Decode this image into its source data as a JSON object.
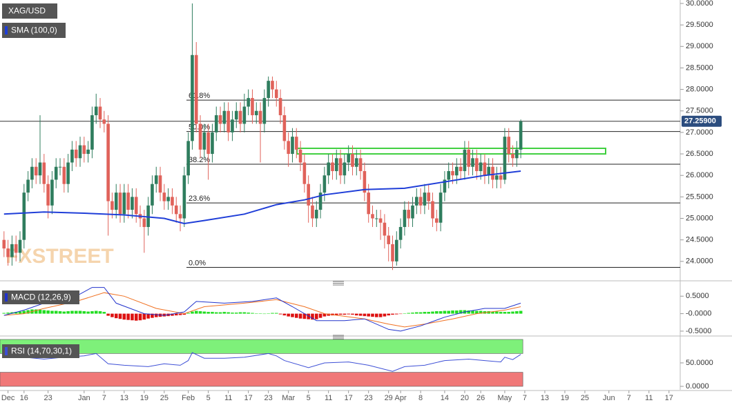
{
  "chart_data": [
    {
      "type": "candlestick",
      "name": "XAG/USD",
      "watermark": "FXSTREET",
      "xlim": [
        -1,
        168.8
      ],
      "ylim": [
        23.58,
        30.08
      ],
      "yticks": [
        {
          "value": 24,
          "label": "24.0000"
        },
        {
          "value": 24.5,
          "label": "24.5000"
        },
        {
          "value": 25,
          "label": "25.0000"
        },
        {
          "value": 25.5,
          "label": "25.5000"
        },
        {
          "value": 26,
          "label": "26.0000"
        },
        {
          "value": 26.5,
          "label": "26.5000"
        },
        {
          "value": 27,
          "label": "27.0000"
        },
        {
          "value": 27.5,
          "label": "27.5000"
        },
        {
          "value": 28,
          "label": "28.0000"
        },
        {
          "value": 28.5,
          "label": "28.5000"
        },
        {
          "value": 29,
          "label": "29.0000"
        },
        {
          "value": 29.5,
          "label": "29.5000"
        },
        {
          "value": 30,
          "label": "30.0000"
        }
      ],
      "up_color": "#2f7d5e",
      "down_color": "#e0625a",
      "open": [
        24.5,
        24.3,
        24.1,
        24.4,
        24.2,
        24.5,
        25.6,
        25.9,
        26.2,
        26.0,
        26.3,
        25.8,
        25.3,
        25.9,
        26.2,
        26.2,
        25.8,
        26.3,
        26.6,
        26.4,
        26.7,
        26.5,
        26.6,
        27.4,
        27.6,
        27.3,
        27.2,
        25.4,
        25.2,
        25.6,
        25.1,
        25.6,
        25.2,
        25.5,
        25.1,
        25.0,
        24.8,
        25.3,
        25.8,
        26.0,
        25.6,
        25.4,
        25.5,
        25.3,
        25.1,
        25.0,
        26.0,
        26.8,
        28.8,
        27.2,
        26.6,
        27.0,
        26.5,
        27.0,
        27.4,
        27.2,
        27.5,
        27.0,
        27.3,
        27.5,
        27.2,
        27.6,
        27.8,
        27.4,
        27.5,
        27.2,
        27.8,
        28.2,
        28.0,
        27.8,
        27.4,
        26.8,
        26.5,
        26.9,
        26.6,
        26.3,
        25.8,
        25.3,
        25.0,
        25.2,
        25.6,
        26.0,
        26.3,
        26.1,
        26.4,
        26.0,
        26.3,
        26.5,
        26.2,
        26.4,
        26.1,
        25.6,
        25.1,
        25.0,
        25.0,
        24.9,
        24.6,
        24.4,
        24.0,
        24.5,
        24.8,
        25.2,
        25.0,
        25.3,
        25.5,
        25.3,
        25.6,
        25.4,
        25.0,
        24.9,
        25.6,
        25.9,
        26.1,
        26.0,
        26.2,
        26.1,
        26.6,
        26.2,
        26.4,
        26.1,
        26.3,
        26.0,
        26.2,
        25.9,
        26.0,
        25.9,
        26.9,
        26.5,
        26.4,
        26.6
      ],
      "high": [
        24.7,
        24.5,
        24.6,
        24.6,
        24.7,
        25.8,
        26.1,
        26.4,
        26.4,
        27.4,
        26.5,
        26.0,
        26.1,
        26.4,
        26.4,
        26.4,
        26.5,
        26.8,
        26.8,
        26.9,
        26.9,
        26.8,
        27.6,
        27.9,
        27.8,
        27.5,
        27.4,
        25.6,
        25.8,
        25.8,
        25.8,
        25.8,
        25.7,
        25.7,
        25.3,
        25.2,
        25.5,
        26.0,
        26.2,
        26.2,
        25.8,
        25.7,
        25.7,
        25.5,
        25.3,
        26.2,
        27.0,
        30.0,
        29.1,
        27.4,
        27.2,
        27.2,
        27.2,
        27.6,
        27.6,
        27.7,
        27.7,
        27.5,
        27.7,
        27.7,
        27.9,
        28.0,
        28.0,
        27.7,
        27.7,
        28.0,
        28.3,
        28.3,
        28.2,
        28.0,
        27.6,
        27.0,
        27.1,
        27.1,
        26.8,
        26.5,
        26.0,
        25.5,
        25.4,
        25.8,
        26.2,
        26.5,
        26.5,
        26.6,
        26.6,
        26.5,
        26.7,
        26.7,
        26.6,
        26.6,
        26.3,
        25.8,
        25.3,
        25.2,
        25.2,
        25.1,
        24.8,
        24.6,
        24.7,
        25.0,
        25.4,
        25.4,
        25.5,
        25.7,
        25.7,
        25.8,
        25.8,
        25.6,
        25.2,
        25.8,
        26.1,
        26.3,
        26.3,
        26.4,
        26.4,
        26.8,
        26.8,
        26.6,
        26.6,
        26.5,
        26.5,
        26.4,
        26.4,
        26.2,
        26.2,
        27.1,
        27.1,
        26.7,
        26.8,
        27.3
      ],
      "low": [
        24.1,
        23.9,
        23.9,
        24.0,
        24.0,
        24.3,
        25.4,
        25.7,
        25.8,
        25.8,
        25.6,
        25.0,
        25.1,
        25.7,
        26.0,
        25.6,
        25.6,
        26.1,
        26.2,
        26.2,
        26.3,
        26.3,
        26.4,
        27.2,
        27.1,
        27.0,
        24.6,
        25.0,
        25.0,
        24.9,
        24.9,
        25.0,
        25.0,
        24.9,
        24.8,
        24.2,
        24.6,
        25.1,
        25.6,
        25.4,
        25.2,
        25.2,
        25.1,
        24.9,
        24.7,
        24.8,
        25.8,
        26.6,
        27.0,
        26.4,
        26.4,
        25.9,
        26.3,
        26.8,
        27.0,
        27.0,
        26.8,
        26.8,
        27.1,
        27.0,
        27.0,
        27.4,
        27.2,
        27.2,
        26.3,
        27.0,
        27.6,
        27.8,
        27.6,
        27.2,
        26.6,
        26.2,
        26.3,
        26.4,
        26.1,
        25.6,
        24.9,
        24.8,
        24.8,
        25.0,
        25.4,
        25.8,
        25.9,
        25.9,
        25.8,
        25.8,
        26.1,
        26.0,
        26.0,
        25.9,
        25.4,
        24.9,
        24.8,
        24.8,
        24.5,
        24.3,
        24.0,
        23.8,
        23.9,
        24.3,
        24.6,
        24.8,
        24.8,
        25.1,
        25.1,
        25.1,
        25.2,
        24.8,
        24.7,
        24.7,
        25.4,
        25.7,
        25.8,
        25.8,
        25.9,
        25.9,
        26.0,
        26.0,
        25.9,
        25.9,
        25.8,
        25.8,
        25.7,
        25.7,
        25.7,
        25.8,
        26.3,
        26.2,
        26.2,
        26.4
      ],
      "close": [
        24.3,
        24.1,
        24.4,
        24.2,
        24.5,
        25.6,
        25.9,
        26.2,
        26.0,
        26.3,
        25.8,
        25.3,
        25.9,
        26.2,
        26.2,
        25.8,
        26.3,
        26.6,
        26.4,
        26.7,
        26.5,
        26.6,
        27.4,
        27.6,
        27.3,
        27.2,
        25.4,
        25.2,
        25.6,
        25.1,
        25.6,
        25.2,
        25.5,
        25.1,
        25.0,
        24.8,
        25.3,
        25.8,
        26.0,
        25.6,
        25.4,
        25.5,
        25.3,
        25.1,
        25.0,
        26.0,
        26.8,
        28.8,
        27.2,
        26.6,
        27.0,
        26.5,
        27.0,
        27.4,
        27.2,
        27.5,
        27.0,
        27.3,
        27.5,
        27.2,
        27.6,
        27.8,
        27.4,
        27.5,
        27.2,
        27.8,
        28.2,
        28.0,
        27.8,
        27.4,
        26.8,
        26.5,
        26.9,
        26.6,
        26.3,
        25.8,
        25.3,
        25.0,
        25.2,
        25.6,
        26.0,
        26.3,
        26.1,
        26.4,
        26.0,
        26.3,
        26.5,
        26.2,
        26.4,
        26.1,
        25.6,
        25.1,
        25.0,
        25.0,
        24.9,
        24.6,
        24.4,
        24.0,
        24.5,
        24.8,
        25.2,
        25.0,
        25.3,
        25.5,
        25.3,
        25.6,
        25.4,
        25.0,
        24.9,
        25.6,
        25.9,
        26.1,
        26.0,
        26.2,
        26.1,
        26.6,
        26.2,
        26.4,
        26.1,
        26.3,
        26.0,
        26.2,
        25.9,
        26.0,
        25.9,
        26.9,
        26.5,
        26.4,
        26.6,
        27.259
      ],
      "sma": {
        "name": "SMA (100,0)",
        "color": "#1f3ed8",
        "x": [
          0,
          10,
          20,
          30,
          40,
          45,
          50,
          60,
          68,
          75,
          80,
          90,
          100,
          110,
          120,
          129
        ],
        "values": [
          25.1,
          25.15,
          25.12,
          25.08,
          25.0,
          24.88,
          24.95,
          25.1,
          25.32,
          25.43,
          25.55,
          25.67,
          25.7,
          25.85,
          26.0,
          26.1
        ]
      },
      "fib": [
        {
          "value": 27.75,
          "label": "61.8%"
        },
        {
          "value": 27.02,
          "label": "50.0%"
        },
        {
          "value": 26.26,
          "label": "38.2%"
        },
        {
          "value": 25.36,
          "label": "23.6%"
        },
        {
          "value": 23.86,
          "label": "0.0%"
        }
      ],
      "zone": [
        26.5,
        26.63
      ],
      "zone_color": "#3ecf3e",
      "last_price": {
        "value": 27.259,
        "label": "27.25900"
      }
    },
    {
      "type": "macd",
      "name": "MACD (12,26,9)",
      "xlim": [
        -1,
        168.8
      ],
      "ylim": [
        -0.6,
        0.88
      ],
      "yticks": [
        {
          "value": -0.5,
          "label": "-0.5000"
        },
        {
          "value": 0,
          "label": "-0.0000"
        },
        {
          "value": 0.5,
          "label": "0.5000"
        }
      ],
      "pos_color": "#22dd22",
      "neg_color": "#dd1111",
      "histogram": [
        0.02,
        0.03,
        0.04,
        0.05,
        0.06,
        0.08,
        0.1,
        0.12,
        0.12,
        0.11,
        0.1,
        0.09,
        0.08,
        0.08,
        0.07,
        0.06,
        0.07,
        0.08,
        0.08,
        0.08,
        0.07,
        0.06,
        0.07,
        0.08,
        0.07,
        0.05,
        -0.06,
        -0.1,
        -0.13,
        -0.15,
        -0.17,
        -0.18,
        -0.19,
        -0.2,
        -0.19,
        -0.17,
        -0.14,
        -0.12,
        -0.1,
        -0.09,
        -0.08,
        -0.07,
        -0.06,
        -0.05,
        -0.04,
        -0.03,
        0.02,
        0.06,
        0.08,
        0.07,
        0.06,
        0.05,
        0.05,
        0.04,
        0.04,
        0.05,
        0.04,
        0.03,
        0.03,
        0.04,
        0.04,
        0.03,
        0.02,
        0.01,
        0.01,
        0.0,
        0.01,
        0.02,
        0.02,
        -0.02,
        -0.05,
        -0.08,
        -0.1,
        -0.12,
        -0.14,
        -0.15,
        -0.16,
        -0.17,
        -0.16,
        -0.12,
        -0.08,
        -0.06,
        -0.05,
        -0.04,
        -0.03,
        -0.03,
        -0.02,
        -0.03,
        -0.05,
        -0.06,
        -0.07,
        -0.08,
        -0.09,
        -0.1,
        -0.1,
        -0.08,
        -0.05,
        -0.03,
        -0.02,
        -0.01,
        0.01,
        0.02,
        0.03,
        0.04,
        0.04,
        0.05,
        0.05,
        0.06,
        0.07,
        0.07,
        0.08,
        0.08,
        0.09,
        0.09,
        0.1,
        0.1,
        0.09,
        0.09,
        0.08,
        0.08,
        0.07,
        0.07,
        0.06,
        0.06,
        0.05,
        0.05,
        0.05,
        0.06,
        0.07,
        0.08
      ],
      "macd": {
        "color": "#2233cc",
        "x": [
          0,
          5,
          10,
          18,
          22,
          25,
          28,
          35,
          40,
          45,
          48,
          55,
          62,
          68,
          72,
          78,
          85,
          90,
          96,
          99,
          104,
          110,
          115,
          120,
          125,
          129
        ],
        "values": [
          -0.05,
          0.1,
          0.3,
          0.5,
          0.75,
          0.75,
          0.3,
          0.0,
          -0.05,
          0.05,
          0.35,
          0.3,
          0.35,
          0.45,
          0.2,
          -0.2,
          -0.2,
          -0.15,
          -0.45,
          -0.5,
          -0.35,
          -0.1,
          0.05,
          0.15,
          0.15,
          0.3
        ]
      },
      "signal": {
        "color": "#f07020",
        "x": [
          0,
          5,
          10,
          18,
          25,
          30,
          38,
          45,
          50,
          60,
          68,
          75,
          80,
          90,
          96,
          100,
          105,
          112,
          118,
          125,
          129
        ],
        "values": [
          -0.05,
          0.0,
          0.15,
          0.35,
          0.6,
          0.5,
          0.15,
          0.0,
          0.2,
          0.3,
          0.4,
          0.2,
          0.0,
          -0.15,
          -0.3,
          -0.38,
          -0.3,
          -0.15,
          0.0,
          0.1,
          0.2
        ]
      }
    },
    {
      "type": "line",
      "name": "RSI (14,70,30,1)",
      "xlim": [
        -1,
        168.8
      ],
      "ylim": [
        -7.4,
        102.9
      ],
      "yticks": [
        {
          "value": 0,
          "label": "0.0000"
        },
        {
          "value": 50,
          "label": "50.0000"
        }
      ],
      "color": "#3d4fd6",
      "x": [
        0,
        5,
        10,
        15,
        20,
        23,
        26,
        30,
        36,
        40,
        44,
        46,
        47,
        50,
        55,
        60,
        66,
        68,
        70,
        76,
        80,
        86,
        91,
        97,
        100,
        105,
        110,
        116,
        120,
        124,
        125,
        127,
        129
      ],
      "values": [
        70,
        62,
        58,
        62,
        65,
        70,
        48,
        45,
        42,
        48,
        45,
        55,
        72,
        60,
        60,
        62,
        70,
        65,
        55,
        40,
        50,
        52,
        45,
        32,
        42,
        45,
        55,
        58,
        55,
        52,
        62,
        57,
        68
      ],
      "bands": [
        {
          "from": 70,
          "to": 100,
          "color": "#7ef07a"
        },
        {
          "from": 0,
          "to": 30,
          "color": "#f07878"
        }
      ],
      "xticks": [
        {
          "value": 1,
          "label": "Dec"
        },
        {
          "value": 5,
          "label": "16"
        },
        {
          "value": 11,
          "label": "23"
        },
        {
          "value": 20,
          "label": "Jan"
        },
        {
          "value": 25,
          "label": "7"
        },
        {
          "value": 30,
          "label": "13"
        },
        {
          "value": 35,
          "label": "19"
        },
        {
          "value": 40,
          "label": "25"
        },
        {
          "value": 46,
          "label": "Feb"
        },
        {
          "value": 51,
          "label": "5"
        },
        {
          "value": 56,
          "label": "11"
        },
        {
          "value": 61,
          "label": "17"
        },
        {
          "value": 66,
          "label": "23"
        },
        {
          "value": 71,
          "label": "Mar"
        },
        {
          "value": 76,
          "label": "5"
        },
        {
          "value": 81,
          "label": "11"
        },
        {
          "value": 86,
          "label": "17"
        },
        {
          "value": 91,
          "label": "23"
        },
        {
          "value": 96,
          "label": "29"
        },
        {
          "value": 99,
          "label": "Apr"
        },
        {
          "value": 104,
          "label": "8"
        },
        {
          "value": 110,
          "label": "14"
        },
        {
          "value": 115,
          "label": "20"
        },
        {
          "value": 119,
          "label": "26"
        },
        {
          "value": 125,
          "label": "May"
        },
        {
          "value": 130,
          "label": "7"
        },
        {
          "value": 135,
          "label": "13"
        },
        {
          "value": 140,
          "label": "19"
        },
        {
          "value": 145,
          "label": "25"
        },
        {
          "value": 151,
          "label": "Jun"
        },
        {
          "value": 156,
          "label": "7"
        },
        {
          "value": 161,
          "label": "11"
        },
        {
          "value": 166,
          "label": "17"
        }
      ]
    }
  ]
}
